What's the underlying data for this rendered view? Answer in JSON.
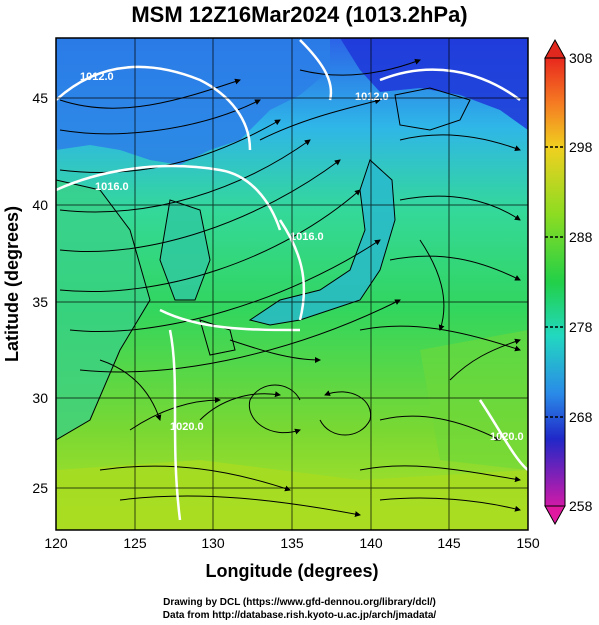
{
  "title": "MSM 12Z16Mar2024 (1013.2hPa)",
  "xlabel": "Longitude (degrees)",
  "ylabel": "Latitude  (degrees)",
  "x_ticks": [
    "120",
    "125",
    "130",
    "135",
    "140",
    "145",
    "150"
  ],
  "y_ticks": [
    "25",
    "30",
    "35",
    "40",
    "45"
  ],
  "colorbar_ticks": [
    "308",
    "298",
    "288",
    "278",
    "268",
    "258"
  ],
  "contour_labels": [
    "1012.0",
    "1016.0",
    "1016.0",
    "1020.0",
    "1020.0",
    "1012.0"
  ],
  "credits": {
    "line1": "Drawing by DCL (https://www.gfd-dennou.org/library/dcl/)",
    "line2": "Data from http://database.rish.kyoto-u.ac.jp/arch/jmadata/"
  },
  "colors": {
    "cold": "#1f2ad8",
    "mid": "#28e0b8",
    "warm": "#9ee21f",
    "contour": "#ffffff",
    "streamline": "#000000"
  },
  "chart_data": {
    "type": "heatmap",
    "title": "MSM 12Z16Mar2024 (1013.2hPa)",
    "xlabel": "Longitude (degrees)",
    "ylabel": "Latitude  (degrees)",
    "xlim": [
      120,
      150
    ],
    "ylim": [
      22.4,
      47.6
    ],
    "x_ticks": [
      120,
      125,
      130,
      135,
      140,
      145,
      150
    ],
    "y_ticks": [
      25,
      30,
      35,
      40,
      45
    ],
    "colorbar": {
      "min": 258,
      "max": 308,
      "ticks": [
        308,
        298,
        288,
        278,
        268,
        258
      ]
    },
    "contours_hPa": [
      1012.0,
      1016.0,
      1020.0
    ],
    "grid": true
  }
}
